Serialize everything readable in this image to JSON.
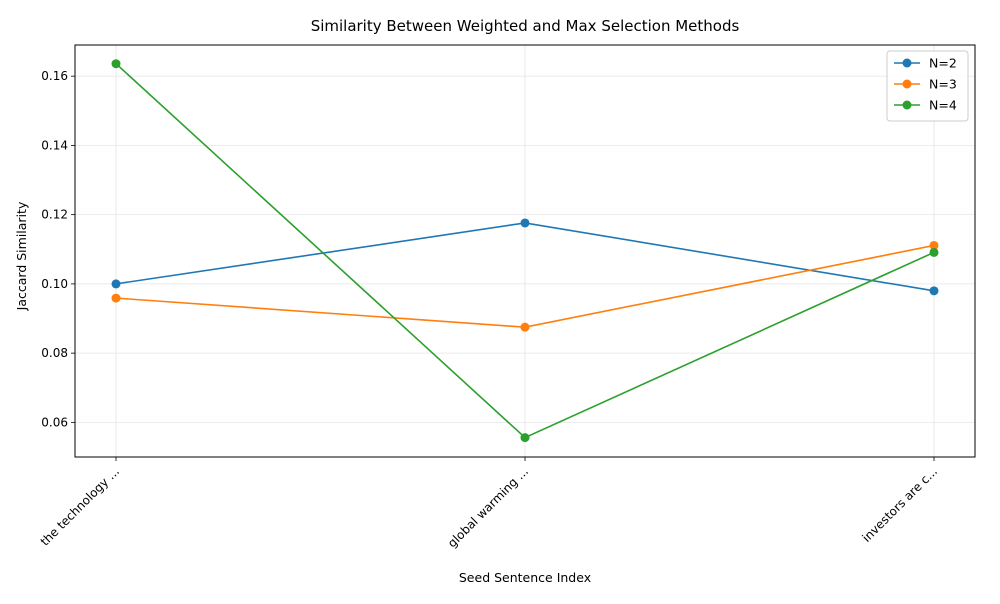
{
  "chart_data": {
    "type": "line",
    "title": "Similarity Between Weighted and Max Selection Methods",
    "xlabel": "Seed Sentence Index",
    "ylabel": "Jaccard Similarity",
    "categories": [
      "the technology ...",
      "global warming ...",
      "investors are c..."
    ],
    "ylim": [
      0.05,
      0.169
    ],
    "yticks": [
      "0.06",
      "0.08",
      "0.10",
      "0.12",
      "0.14",
      "0.16"
    ],
    "grid": true,
    "legend_position": "top-right",
    "series": [
      {
        "name": "N=2",
        "color": "#1f77b4",
        "values": [
          0.1,
          0.1176,
          0.098
        ]
      },
      {
        "name": "N=3",
        "color": "#ff7f0e",
        "values": [
          0.0959,
          0.0875,
          0.1111
        ]
      },
      {
        "name": "N=4",
        "color": "#2ca02c",
        "values": [
          0.1636,
          0.0556,
          0.1091
        ]
      }
    ]
  }
}
